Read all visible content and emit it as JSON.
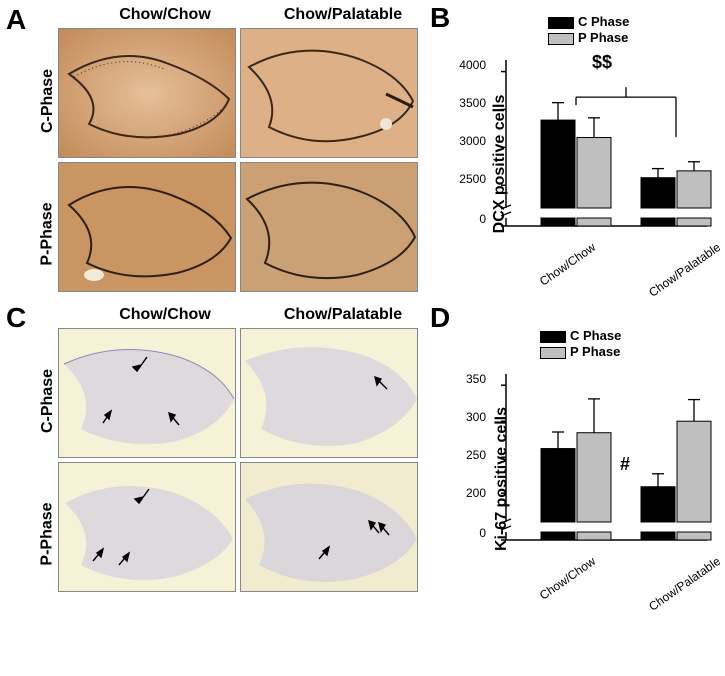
{
  "panelLabels": {
    "A": "A",
    "B": "B",
    "C": "C",
    "D": "D"
  },
  "columns": {
    "chowchow": "Chow/Chow",
    "chowpal": "Chow/Palatable"
  },
  "rows": {
    "c": "C-Phase",
    "p": "P-Phase"
  },
  "microA": {
    "bg_c": "#d9a679",
    "bg_p": "#c99563",
    "dg_stroke": "#3a2718"
  },
  "microC": {
    "bg": "#f5f2d8",
    "dg_fill": "#c9c5e1",
    "arrow_color": "#000000"
  },
  "chartB": {
    "ylabel": "DCX positive cells",
    "legend_c": "C Phase",
    "legend_p": "P Phase",
    "legend_c_color": "#000000",
    "legend_p_color": "#bfbfbf",
    "bg": "#ffffff",
    "ylim": [
      2200,
      4100
    ],
    "break_low": 0,
    "ticks": [
      0,
      2500,
      3000,
      3500,
      4000
    ],
    "bars": [
      {
        "group": "Chow/Chow",
        "phase": "C",
        "value": 3360,
        "err": 230,
        "color": "#000000"
      },
      {
        "group": "Chow/Chow",
        "phase": "P",
        "value": 3130,
        "err": 260,
        "color": "#bfbfbf"
      },
      {
        "group": "Chow/Palatable",
        "phase": "C",
        "value": 2600,
        "err": 120,
        "color": "#000000"
      },
      {
        "group": "Chow/Palatable",
        "phase": "P",
        "value": 2690,
        "err": 120,
        "color": "#bfbfbf"
      }
    ],
    "xlabels": [
      "Chow/Chow",
      "Chow/Palatable"
    ],
    "annot": "$$"
  },
  "chartD": {
    "ylabel": "Ki-67 positive cells",
    "legend_c": "C Phase",
    "legend_p": "P Phase",
    "legend_c_color": "#000000",
    "legend_p_color": "#bfbfbf",
    "bg": "#ffffff",
    "ylim": [
      160,
      360
    ],
    "break_low": 0,
    "ticks": [
      0,
      200,
      250,
      300,
      350
    ],
    "bars": [
      {
        "group": "Chow/Chow",
        "phase": "C",
        "value": 262,
        "err": 23,
        "color": "#000000"
      },
      {
        "group": "Chow/Chow",
        "phase": "P",
        "value": 284,
        "err": 47,
        "color": "#bfbfbf"
      },
      {
        "group": "Chow/Palatable",
        "phase": "C",
        "value": 209,
        "err": 18,
        "color": "#000000"
      },
      {
        "group": "Chow/Palatable",
        "phase": "P",
        "value": 300,
        "err": 30,
        "color": "#bfbfbf"
      }
    ],
    "xlabels": [
      "Chow/Chow",
      "Chow/Palatable"
    ],
    "annot": "#"
  }
}
